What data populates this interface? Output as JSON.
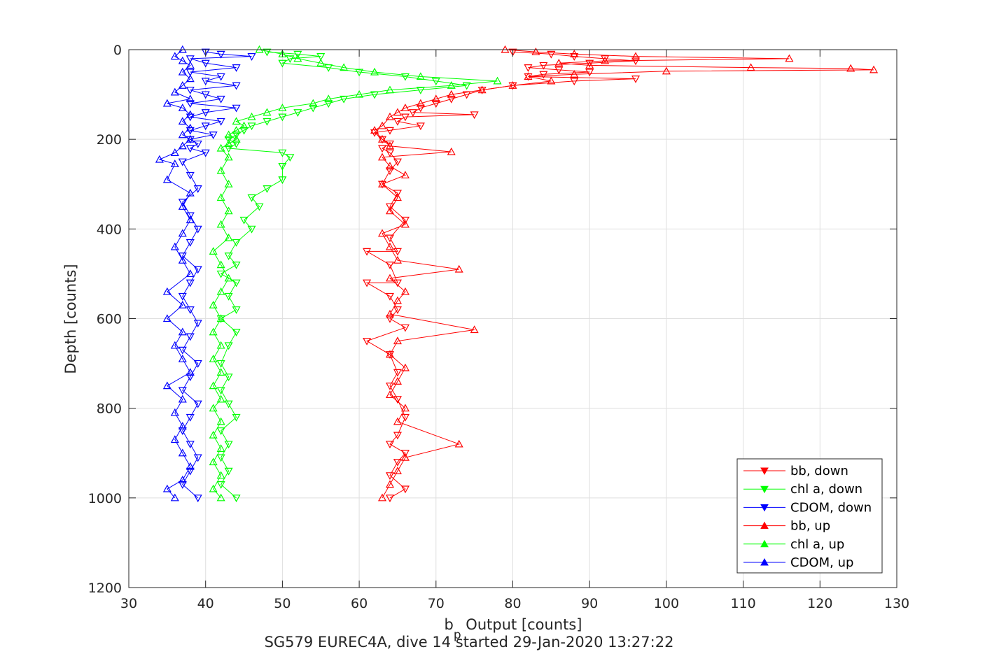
{
  "chart_data": {
    "type": "scatter",
    "title": "",
    "caption": "SG579 EUREC4A, dive 14 started 29-Jan-2020 13:27:22",
    "xlabel": {
      "base": "b",
      "subscript": "p",
      "rest": " Output [counts]"
    },
    "ylabel": "Depth [counts]",
    "xlim": [
      30,
      130
    ],
    "ylim": [
      0,
      1200
    ],
    "y_reversed": true,
    "grid": true,
    "legend_placement": "bottom-right",
    "xticks": [
      30,
      40,
      50,
      60,
      70,
      80,
      90,
      100,
      110,
      120,
      130
    ],
    "yticks": [
      0,
      200,
      400,
      600,
      800,
      1000,
      1200
    ],
    "series": [
      {
        "name": "bb, down",
        "color": "#ff0000",
        "marker": "triangle-down",
        "points": [
          [
            80,
            5
          ],
          [
            85,
            10
          ],
          [
            88,
            15
          ],
          [
            92,
            20
          ],
          [
            96,
            25
          ],
          [
            90,
            30
          ],
          [
            84,
            35
          ],
          [
            82,
            40
          ],
          [
            86,
            45
          ],
          [
            90,
            50
          ],
          [
            84,
            55
          ],
          [
            82,
            60
          ],
          [
            96,
            65
          ],
          [
            88,
            70
          ],
          [
            80,
            80
          ],
          [
            76,
            90
          ],
          [
            74,
            100
          ],
          [
            72,
            110
          ],
          [
            70,
            120
          ],
          [
            68,
            130
          ],
          [
            67,
            140
          ],
          [
            75,
            145
          ],
          [
            66,
            150
          ],
          [
            65,
            160
          ],
          [
            68,
            170
          ],
          [
            64,
            180
          ],
          [
            62,
            185
          ],
          [
            63,
            200
          ],
          [
            64,
            210
          ],
          [
            63,
            220
          ],
          [
            64,
            230
          ],
          [
            65,
            250
          ],
          [
            64,
            270
          ],
          [
            63,
            300
          ],
          [
            65,
            320
          ],
          [
            64,
            350
          ],
          [
            66,
            380
          ],
          [
            64,
            420
          ],
          [
            65,
            450
          ],
          [
            61,
            450
          ],
          [
            64,
            480
          ],
          [
            65,
            520
          ],
          [
            61,
            520
          ],
          [
            64,
            550
          ],
          [
            65,
            580
          ],
          [
            64,
            600
          ],
          [
            66,
            620
          ],
          [
            61,
            650
          ],
          [
            64,
            680
          ],
          [
            65,
            720
          ],
          [
            64,
            750
          ],
          [
            65,
            780
          ],
          [
            66,
            820
          ],
          [
            65,
            860
          ],
          [
            64,
            880
          ],
          [
            66,
            900
          ],
          [
            65,
            920
          ],
          [
            64,
            950
          ],
          [
            66,
            980
          ],
          [
            64,
            1000
          ]
        ]
      },
      {
        "name": "chl a, down",
        "color": "#00ff00",
        "marker": "triangle-down",
        "points": [
          [
            48,
            5
          ],
          [
            52,
            10
          ],
          [
            55,
            15
          ],
          [
            51,
            20
          ],
          [
            50,
            30
          ],
          [
            56,
            40
          ],
          [
            60,
            50
          ],
          [
            66,
            60
          ],
          [
            70,
            70
          ],
          [
            74,
            80
          ],
          [
            68,
            90
          ],
          [
            62,
            100
          ],
          [
            58,
            110
          ],
          [
            56,
            120
          ],
          [
            54,
            130
          ],
          [
            52,
            140
          ],
          [
            50,
            150
          ],
          [
            48,
            160
          ],
          [
            46,
            170
          ],
          [
            45,
            180
          ],
          [
            44,
            190
          ],
          [
            43,
            200
          ],
          [
            44,
            210
          ],
          [
            43,
            220
          ],
          [
            50,
            230
          ],
          [
            51,
            240
          ],
          [
            50,
            260
          ],
          [
            50,
            290
          ],
          [
            48,
            310
          ],
          [
            46,
            330
          ],
          [
            47,
            350
          ],
          [
            45,
            380
          ],
          [
            46,
            400
          ],
          [
            44,
            430
          ],
          [
            43,
            460
          ],
          [
            44,
            480
          ],
          [
            42,
            500
          ],
          [
            44,
            520
          ],
          [
            43,
            550
          ],
          [
            44,
            580
          ],
          [
            42,
            600
          ],
          [
            44,
            630
          ],
          [
            43,
            660
          ],
          [
            42,
            700
          ],
          [
            43,
            730
          ],
          [
            42,
            760
          ],
          [
            43,
            790
          ],
          [
            44,
            820
          ],
          [
            42,
            850
          ],
          [
            43,
            880
          ],
          [
            42,
            910
          ],
          [
            43,
            940
          ],
          [
            42,
            970
          ],
          [
            44,
            1000
          ]
        ]
      },
      {
        "name": "CDOM, down",
        "color": "#0000ff",
        "marker": "triangle-down",
        "points": [
          [
            40,
            5
          ],
          [
            42,
            10
          ],
          [
            46,
            15
          ],
          [
            38,
            20
          ],
          [
            40,
            30
          ],
          [
            44,
            40
          ],
          [
            38,
            50
          ],
          [
            42,
            60
          ],
          [
            40,
            70
          ],
          [
            44,
            80
          ],
          [
            38,
            90
          ],
          [
            40,
            100
          ],
          [
            42,
            110
          ],
          [
            38,
            120
          ],
          [
            44,
            130
          ],
          [
            40,
            140
          ],
          [
            38,
            150
          ],
          [
            42,
            160
          ],
          [
            40,
            170
          ],
          [
            38,
            180
          ],
          [
            41,
            190
          ],
          [
            38,
            200
          ],
          [
            39,
            210
          ],
          [
            38,
            220
          ],
          [
            40,
            230
          ],
          [
            37,
            250
          ],
          [
            38,
            280
          ],
          [
            39,
            310
          ],
          [
            37,
            340
          ],
          [
            38,
            370
          ],
          [
            39,
            400
          ],
          [
            38,
            430
          ],
          [
            37,
            460
          ],
          [
            39,
            490
          ],
          [
            38,
            520
          ],
          [
            37,
            550
          ],
          [
            38,
            580
          ],
          [
            39,
            610
          ],
          [
            38,
            640
          ],
          [
            37,
            670
          ],
          [
            39,
            700
          ],
          [
            38,
            730
          ],
          [
            37,
            760
          ],
          [
            39,
            790
          ],
          [
            38,
            820
          ],
          [
            37,
            850
          ],
          [
            38,
            880
          ],
          [
            39,
            910
          ],
          [
            38,
            940
          ],
          [
            37,
            970
          ],
          [
            39,
            1000
          ]
        ]
      },
      {
        "name": "bb, up",
        "color": "#ff0000",
        "marker": "triangle-up",
        "points": [
          [
            79,
            0
          ],
          [
            83,
            5
          ],
          [
            88,
            10
          ],
          [
            96,
            15
          ],
          [
            116,
            20
          ],
          [
            92,
            25
          ],
          [
            86,
            30
          ],
          [
            90,
            35
          ],
          [
            111,
            40
          ],
          [
            124,
            42
          ],
          [
            127,
            45
          ],
          [
            100,
            48
          ],
          [
            88,
            55
          ],
          [
            82,
            60
          ],
          [
            85,
            70
          ],
          [
            80,
            80
          ],
          [
            76,
            90
          ],
          [
            72,
            100
          ],
          [
            70,
            110
          ],
          [
            68,
            120
          ],
          [
            66,
            130
          ],
          [
            65,
            140
          ],
          [
            64,
            150
          ],
          [
            63,
            170
          ],
          [
            62,
            180
          ],
          [
            63,
            200
          ],
          [
            64,
            215
          ],
          [
            72,
            228
          ],
          [
            63,
            240
          ],
          [
            64,
            260
          ],
          [
            66,
            280
          ],
          [
            63,
            300
          ],
          [
            65,
            330
          ],
          [
            64,
            360
          ],
          [
            66,
            390
          ],
          [
            63,
            410
          ],
          [
            64,
            440
          ],
          [
            65,
            470
          ],
          [
            73,
            490
          ],
          [
            64,
            510
          ],
          [
            66,
            540
          ],
          [
            65,
            560
          ],
          [
            64,
            590
          ],
          [
            75,
            625
          ],
          [
            65,
            650
          ],
          [
            64,
            680
          ],
          [
            66,
            710
          ],
          [
            65,
            740
          ],
          [
            64,
            770
          ],
          [
            66,
            800
          ],
          [
            65,
            830
          ],
          [
            73,
            880
          ],
          [
            66,
            910
          ],
          [
            65,
            940
          ],
          [
            64,
            970
          ],
          [
            63,
            1000
          ]
        ]
      },
      {
        "name": "chl a, up",
        "color": "#00ff00",
        "marker": "triangle-up",
        "points": [
          [
            47,
            0
          ],
          [
            50,
            10
          ],
          [
            52,
            20
          ],
          [
            55,
            30
          ],
          [
            58,
            40
          ],
          [
            62,
            50
          ],
          [
            68,
            60
          ],
          [
            78,
            70
          ],
          [
            72,
            80
          ],
          [
            64,
            90
          ],
          [
            60,
            100
          ],
          [
            56,
            110
          ],
          [
            54,
            120
          ],
          [
            50,
            130
          ],
          [
            48,
            140
          ],
          [
            46,
            150
          ],
          [
            44,
            160
          ],
          [
            45,
            170
          ],
          [
            44,
            180
          ],
          [
            43,
            190
          ],
          [
            44,
            200
          ],
          [
            43,
            210
          ],
          [
            42,
            220
          ],
          [
            43,
            240
          ],
          [
            42,
            270
          ],
          [
            43,
            300
          ],
          [
            42,
            330
          ],
          [
            43,
            360
          ],
          [
            42,
            390
          ],
          [
            43,
            420
          ],
          [
            41,
            450
          ],
          [
            42,
            480
          ],
          [
            43,
            510
          ],
          [
            42,
            540
          ],
          [
            41,
            570
          ],
          [
            42,
            600
          ],
          [
            41,
            630
          ],
          [
            42,
            660
          ],
          [
            41,
            690
          ],
          [
            42,
            720
          ],
          [
            41,
            750
          ],
          [
            42,
            780
          ],
          [
            41,
            800
          ],
          [
            42,
            830
          ],
          [
            41,
            860
          ],
          [
            42,
            890
          ],
          [
            41,
            920
          ],
          [
            42,
            950
          ],
          [
            41,
            980
          ],
          [
            42,
            1000
          ]
        ]
      },
      {
        "name": "CDOM, up",
        "color": "#0000ff",
        "marker": "triangle-up",
        "points": [
          [
            37,
            0
          ],
          [
            36,
            15
          ],
          [
            37,
            25
          ],
          [
            38,
            35
          ],
          [
            37,
            50
          ],
          [
            38,
            65
          ],
          [
            37,
            80
          ],
          [
            36,
            95
          ],
          [
            38,
            110
          ],
          [
            35,
            120
          ],
          [
            37,
            130
          ],
          [
            38,
            145
          ],
          [
            37,
            160
          ],
          [
            38,
            175
          ],
          [
            37,
            190
          ],
          [
            38,
            200
          ],
          [
            37,
            215
          ],
          [
            36,
            230
          ],
          [
            34,
            245
          ],
          [
            36,
            255
          ],
          [
            35,
            290
          ],
          [
            38,
            320
          ],
          [
            37,
            350
          ],
          [
            38,
            380
          ],
          [
            37,
            410
          ],
          [
            36,
            440
          ],
          [
            37,
            470
          ],
          [
            38,
            500
          ],
          [
            35,
            540
          ],
          [
            37,
            570
          ],
          [
            35,
            600
          ],
          [
            37,
            630
          ],
          [
            36,
            660
          ],
          [
            37,
            690
          ],
          [
            38,
            720
          ],
          [
            35,
            750
          ],
          [
            37,
            780
          ],
          [
            36,
            810
          ],
          [
            37,
            840
          ],
          [
            36,
            870
          ],
          [
            37,
            900
          ],
          [
            38,
            930
          ],
          [
            37,
            960
          ],
          [
            35,
            980
          ],
          [
            36,
            1000
          ]
        ]
      }
    ]
  }
}
